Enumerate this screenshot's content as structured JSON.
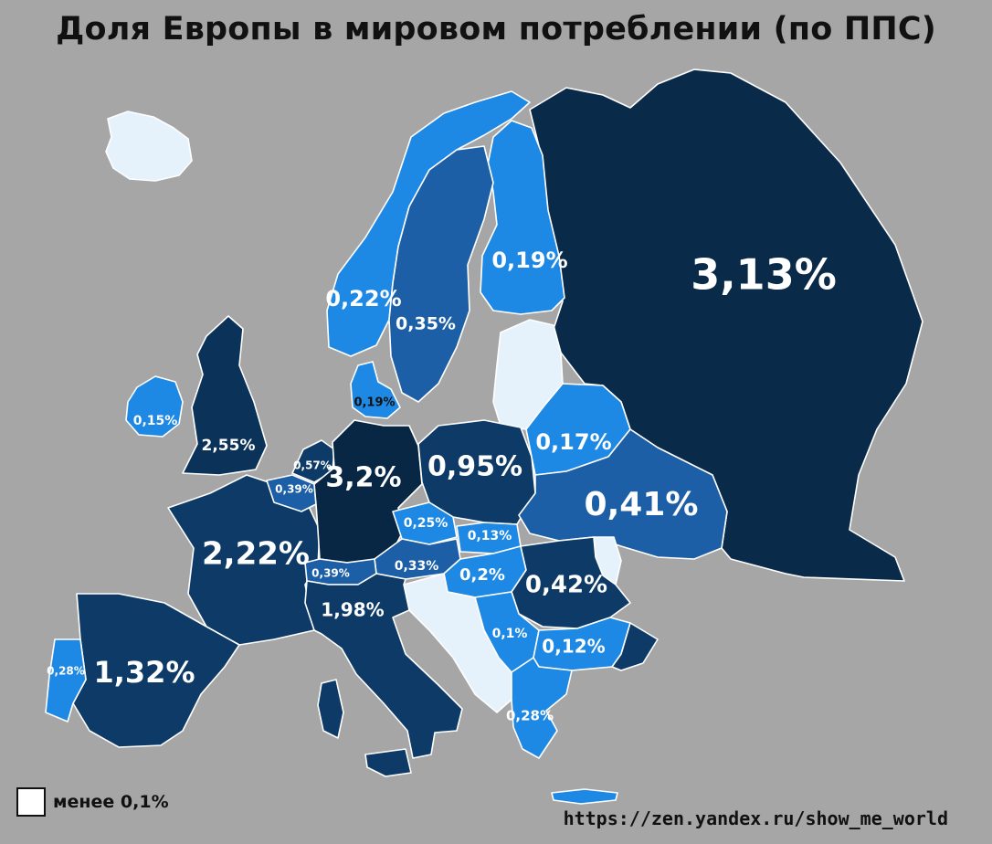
{
  "title": "Доля Европы в мировом потреблении (по ППС)",
  "colors": {
    "background": "#a6a6a6",
    "darkest": "#0a2a4a",
    "dark": "#0d3a66",
    "medium": "#1d5fa6",
    "bright": "#1e88e5",
    "light": "#e6f2fb"
  },
  "countries": [
    {
      "id": "russia",
      "label": "3,13%",
      "color": "#0a2a4a"
    },
    {
      "id": "germany",
      "label": "3,2%",
      "color": "#082744"
    },
    {
      "id": "uk",
      "label": "2,55%",
      "color": "#0b3258"
    },
    {
      "id": "france",
      "label": "2,22%",
      "color": "#0d3a66"
    },
    {
      "id": "italy",
      "label": "1,98%",
      "color": "#0d3a66"
    },
    {
      "id": "spain",
      "label": "1,32%",
      "color": "#0d3a66"
    },
    {
      "id": "poland",
      "label": "0,95%",
      "color": "#0d3a66"
    },
    {
      "id": "turkey",
      "label": "",
      "color": "#0d3a66"
    },
    {
      "id": "ukraine",
      "label": "0,41%",
      "color": "#1d5fa6"
    },
    {
      "id": "romania",
      "label": "0,42%",
      "color": "#0d3a66"
    },
    {
      "id": "sweden",
      "label": "0,35%",
      "color": "#1d5fa6"
    },
    {
      "id": "norway",
      "label": "0,22%",
      "color": "#1e88e5"
    },
    {
      "id": "finland",
      "label": "0,19%",
      "color": "#1e88e5"
    },
    {
      "id": "denmark",
      "label": "0,19%",
      "color": "#1e88e5"
    },
    {
      "id": "belarus",
      "label": "0,17%",
      "color": "#1e88e5"
    },
    {
      "id": "ireland",
      "label": "0,15%",
      "color": "#1e88e5"
    },
    {
      "id": "netherlands",
      "label": "0,57%",
      "color": "#0d3a66"
    },
    {
      "id": "belgium",
      "label": "0,39%",
      "color": "#1d5fa6"
    },
    {
      "id": "switzerland",
      "label": "0,39%",
      "color": "#1d5fa6"
    },
    {
      "id": "czechia",
      "label": "0,25%",
      "color": "#1e88e5"
    },
    {
      "id": "austria",
      "label": "0,33%",
      "color": "#1d5fa6"
    },
    {
      "id": "slovakia",
      "label": "0,13%",
      "color": "#1e88e5"
    },
    {
      "id": "hungary",
      "label": "0,2%",
      "color": "#1e88e5"
    },
    {
      "id": "serbia",
      "label": "0,1%",
      "color": "#1e88e5"
    },
    {
      "id": "bulgaria",
      "label": "0,12%",
      "color": "#1e88e5"
    },
    {
      "id": "greece",
      "label": "0,28%",
      "color": "#1e88e5"
    },
    {
      "id": "portugal",
      "label": "0,28%",
      "color": "#1e88e5"
    }
  ],
  "legend": {
    "label": "менее 0,1%",
    "swatch_color": "#ffffff"
  },
  "source": "https://zen.yandex.ru/show_me_world"
}
